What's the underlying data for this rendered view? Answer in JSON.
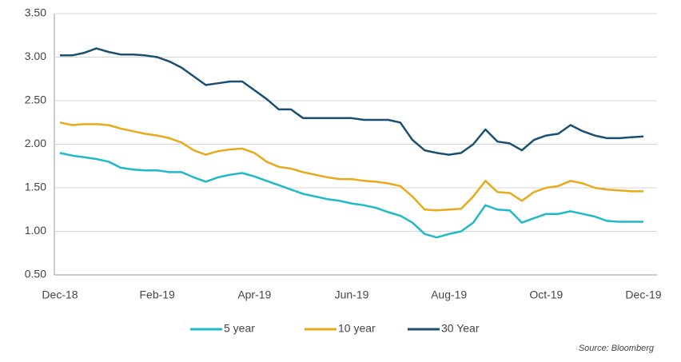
{
  "chart_data": {
    "type": "line",
    "categories": [
      "Dec-18",
      null,
      null,
      null,
      null,
      null,
      null,
      null,
      "Feb-19",
      null,
      null,
      null,
      null,
      null,
      null,
      null,
      "Apr-19",
      null,
      null,
      null,
      null,
      null,
      null,
      null,
      "Jun-19",
      null,
      null,
      null,
      null,
      null,
      null,
      null,
      "Aug-19",
      null,
      null,
      null,
      null,
      null,
      null,
      null,
      "Oct-19",
      null,
      null,
      null,
      null,
      null,
      null,
      null,
      "Dec-19"
    ],
    "series": [
      {
        "name": "5 year",
        "color": "#1fb9c8",
        "values": [
          1.9,
          1.87,
          1.85,
          1.83,
          1.8,
          1.73,
          1.71,
          1.7,
          1.7,
          1.68,
          1.68,
          1.62,
          1.57,
          1.62,
          1.65,
          1.67,
          1.63,
          1.58,
          1.53,
          1.48,
          1.43,
          1.4,
          1.37,
          1.35,
          1.32,
          1.3,
          1.27,
          1.22,
          1.18,
          1.1,
          0.97,
          0.93,
          0.97,
          1.0,
          1.1,
          1.3,
          1.25,
          1.24,
          1.1,
          1.15,
          1.2,
          1.2,
          1.23,
          1.2,
          1.17,
          1.12,
          1.11,
          1.11,
          1.11
        ]
      },
      {
        "name": "10 year",
        "color": "#e8a91a",
        "values": [
          2.25,
          2.22,
          2.23,
          2.23,
          2.22,
          2.18,
          2.15,
          2.12,
          2.1,
          2.07,
          2.02,
          1.93,
          1.88,
          1.92,
          1.94,
          1.95,
          1.9,
          1.8,
          1.74,
          1.72,
          1.68,
          1.65,
          1.62,
          1.6,
          1.6,
          1.58,
          1.57,
          1.55,
          1.52,
          1.4,
          1.25,
          1.24,
          1.25,
          1.26,
          1.4,
          1.58,
          1.45,
          1.44,
          1.35,
          1.45,
          1.5,
          1.52,
          1.58,
          1.55,
          1.5,
          1.48,
          1.47,
          1.46,
          1.46
        ]
      },
      {
        "name": "30 Year",
        "color": "#1b4f72",
        "values": [
          3.02,
          3.02,
          3.05,
          3.1,
          3.06,
          3.03,
          3.03,
          3.02,
          3.0,
          2.95,
          2.88,
          2.78,
          2.68,
          2.7,
          2.72,
          2.72,
          2.62,
          2.52,
          2.4,
          2.4,
          2.3,
          2.3,
          2.3,
          2.3,
          2.3,
          2.28,
          2.28,
          2.28,
          2.25,
          2.05,
          1.93,
          1.9,
          1.88,
          1.9,
          2.0,
          2.17,
          2.03,
          2.01,
          1.93,
          2.05,
          2.1,
          2.12,
          2.22,
          2.15,
          2.1,
          2.07,
          2.07,
          2.08,
          2.09
        ]
      }
    ],
    "ylim": [
      0.5,
      3.5
    ],
    "yticks": [
      {
        "value": 0.5,
        "label": "0.50"
      },
      {
        "value": 1,
        "label": "1.00"
      },
      {
        "value": 1.5,
        "label": "1.50"
      },
      {
        "value": 2,
        "label": "2.00"
      },
      {
        "value": 2.5,
        "label": "2.50"
      },
      {
        "value": 3,
        "label": "3.00"
      },
      {
        "value": 3.5,
        "label": "3.50"
      }
    ],
    "grid": true,
    "legend": "bottom",
    "source": "Source: Bloomberg"
  }
}
